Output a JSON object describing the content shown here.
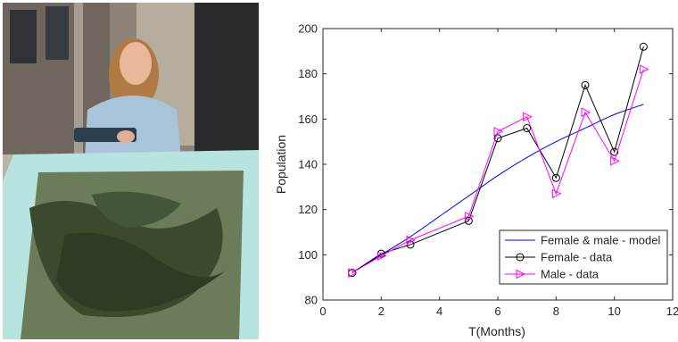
{
  "photo": {
    "subject": "researcher with clipboard beside a tank of aquatic plants"
  },
  "chart_data": {
    "type": "line",
    "title": "",
    "xlabel": "T(Months)",
    "ylabel": "Population",
    "xlim": [
      0,
      12
    ],
    "ylim": [
      80,
      200
    ],
    "xticks": [
      0,
      2,
      4,
      6,
      8,
      10,
      12
    ],
    "yticks": [
      80,
      100,
      120,
      140,
      160,
      180,
      200
    ],
    "grid": false,
    "legend_position": "bottom-right",
    "series": [
      {
        "name": "Female & male - model",
        "color": "#0000ff",
        "marker": "none",
        "x": [
          1,
          2,
          3,
          4,
          5,
          6,
          7,
          8,
          9,
          10,
          11
        ],
        "y": [
          92,
          100,
          108,
          117,
          126,
          135,
          143,
          150,
          156,
          162,
          166.5
        ]
      },
      {
        "name": "Female - data",
        "color": "#000000",
        "marker": "circle",
        "x": [
          1,
          2,
          3,
          5,
          6,
          7,
          8,
          9,
          10,
          11
        ],
        "y": [
          92,
          100.5,
          104.5,
          115,
          151.5,
          156,
          134,
          175,
          145.5,
          192
        ]
      },
      {
        "name": "Male - data",
        "color": "#ff00ff",
        "marker": "triangle-right",
        "x": [
          1,
          2,
          3,
          5,
          6,
          7,
          8,
          9,
          10,
          11
        ],
        "y": [
          92,
          99.5,
          106.5,
          117,
          154.5,
          161,
          127,
          163,
          141.5,
          182
        ]
      }
    ]
  }
}
